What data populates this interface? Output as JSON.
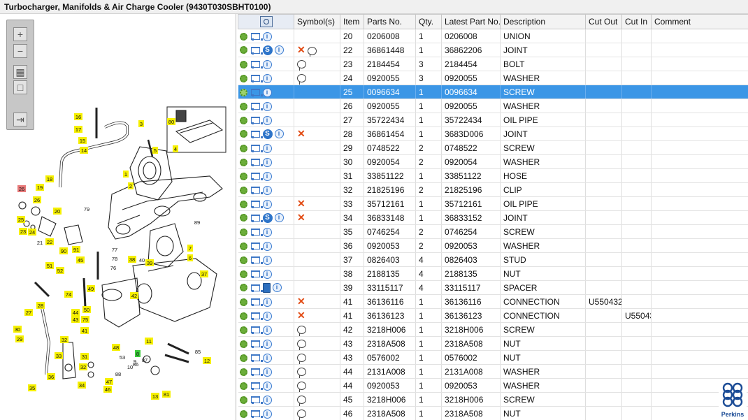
{
  "title": "Turbocharger, Manifolds & Air Charge Cooler (9430T030SBHT0100)",
  "columns": {
    "symbols": "Symbol(s)",
    "item": "Item",
    "parts_no": "Parts No.",
    "qty": "Qty.",
    "latest": "Latest Part No.",
    "description": "Description",
    "cut_out": "Cut Out",
    "cut_in": "Cut In",
    "comment": "Comment"
  },
  "rows": [
    {
      "item": "20",
      "parts_no": "0206008",
      "qty": "1",
      "latest": "0206008",
      "description": "UNION",
      "cut_out": "",
      "cut_in": "",
      "comment": "",
      "s_icon": false,
      "book_icon": false,
      "symbols": []
    },
    {
      "item": "22",
      "parts_no": "36861448",
      "qty": "1",
      "latest": "36862206",
      "description": "JOINT",
      "cut_out": "",
      "cut_in": "",
      "comment": "",
      "s_icon": true,
      "book_icon": false,
      "symbols": [
        "x",
        "note"
      ]
    },
    {
      "item": "23",
      "parts_no": "2184454",
      "qty": "3",
      "latest": "2184454",
      "description": "BOLT",
      "cut_out": "",
      "cut_in": "",
      "comment": "",
      "s_icon": false,
      "book_icon": false,
      "symbols": [
        "note"
      ]
    },
    {
      "item": "24",
      "parts_no": "0920055",
      "qty": "3",
      "latest": "0920055",
      "description": "WASHER",
      "cut_out": "",
      "cut_in": "",
      "comment": "",
      "s_icon": false,
      "book_icon": false,
      "symbols": [
        "note"
      ]
    },
    {
      "item": "25",
      "parts_no": "0096634",
      "qty": "1",
      "latest": "0096634",
      "description": "SCREW",
      "cut_out": "",
      "cut_in": "",
      "comment": "",
      "s_icon": false,
      "book_icon": false,
      "symbols": [],
      "selected": true
    },
    {
      "item": "26",
      "parts_no": "0920055",
      "qty": "1",
      "latest": "0920055",
      "description": "WASHER",
      "cut_out": "",
      "cut_in": "",
      "comment": "",
      "s_icon": false,
      "book_icon": false,
      "symbols": []
    },
    {
      "item": "27",
      "parts_no": "35722434",
      "qty": "1",
      "latest": "35722434",
      "description": "OIL PIPE",
      "cut_out": "",
      "cut_in": "",
      "comment": "",
      "s_icon": false,
      "book_icon": false,
      "symbols": []
    },
    {
      "item": "28",
      "parts_no": "36861454",
      "qty": "1",
      "latest": "3683D006",
      "description": "JOINT",
      "cut_out": "",
      "cut_in": "",
      "comment": "",
      "s_icon": true,
      "book_icon": false,
      "symbols": [
        "x"
      ]
    },
    {
      "item": "29",
      "parts_no": "0748522",
      "qty": "2",
      "latest": "0748522",
      "description": "SCREW",
      "cut_out": "",
      "cut_in": "",
      "comment": "",
      "s_icon": false,
      "book_icon": false,
      "symbols": []
    },
    {
      "item": "30",
      "parts_no": "0920054",
      "qty": "2",
      "latest": "0920054",
      "description": "WASHER",
      "cut_out": "",
      "cut_in": "",
      "comment": "",
      "s_icon": false,
      "book_icon": false,
      "symbols": []
    },
    {
      "item": "31",
      "parts_no": "33851122",
      "qty": "1",
      "latest": "33851122",
      "description": "HOSE",
      "cut_out": "",
      "cut_in": "",
      "comment": "",
      "s_icon": false,
      "book_icon": false,
      "symbols": []
    },
    {
      "item": "32",
      "parts_no": "21825196",
      "qty": "2",
      "latest": "21825196",
      "description": "CLIP",
      "cut_out": "",
      "cut_in": "",
      "comment": "",
      "s_icon": false,
      "book_icon": false,
      "symbols": []
    },
    {
      "item": "33",
      "parts_no": "35712161",
      "qty": "1",
      "latest": "35712161",
      "description": "OIL PIPE",
      "cut_out": "",
      "cut_in": "",
      "comment": "",
      "s_icon": false,
      "book_icon": false,
      "symbols": [
        "x"
      ]
    },
    {
      "item": "34",
      "parts_no": "36833148",
      "qty": "1",
      "latest": "36833152",
      "description": "JOINT",
      "cut_out": "",
      "cut_in": "",
      "comment": "",
      "s_icon": true,
      "book_icon": false,
      "symbols": [
        "x"
      ]
    },
    {
      "item": "35",
      "parts_no": "0746254",
      "qty": "2",
      "latest": "0746254",
      "description": "SCREW",
      "cut_out": "",
      "cut_in": "",
      "comment": "",
      "s_icon": false,
      "book_icon": false,
      "symbols": []
    },
    {
      "item": "36",
      "parts_no": "0920053",
      "qty": "2",
      "latest": "0920053",
      "description": "WASHER",
      "cut_out": "",
      "cut_in": "",
      "comment": "",
      "s_icon": false,
      "book_icon": false,
      "symbols": []
    },
    {
      "item": "37",
      "parts_no": "0826403",
      "qty": "4",
      "latest": "0826403",
      "description": "STUD",
      "cut_out": "",
      "cut_in": "",
      "comment": "",
      "s_icon": false,
      "book_icon": false,
      "symbols": []
    },
    {
      "item": "38",
      "parts_no": "2188135",
      "qty": "4",
      "latest": "2188135",
      "description": "NUT",
      "cut_out": "",
      "cut_in": "",
      "comment": "",
      "s_icon": false,
      "book_icon": false,
      "symbols": []
    },
    {
      "item": "39",
      "parts_no": "33115117",
      "qty": "4",
      "latest": "33115117",
      "description": "SPACER",
      "cut_out": "",
      "cut_in": "",
      "comment": "",
      "s_icon": false,
      "book_icon": true,
      "symbols": []
    },
    {
      "item": "41",
      "parts_no": "36136116",
      "qty": "1",
      "latest": "36136116",
      "description": "CONNECTION",
      "cut_out": "U550432",
      "cut_in": "",
      "comment": "",
      "s_icon": false,
      "book_icon": false,
      "symbols": [
        "x"
      ]
    },
    {
      "item": "41",
      "parts_no": "36136123",
      "qty": "1",
      "latest": "36136123",
      "description": "CONNECTION",
      "cut_out": "",
      "cut_in": "U55043",
      "comment": "",
      "s_icon": false,
      "book_icon": false,
      "symbols": [
        "x"
      ]
    },
    {
      "item": "42",
      "parts_no": "3218H006",
      "qty": "1",
      "latest": "3218H006",
      "description": "SCREW",
      "cut_out": "",
      "cut_in": "",
      "comment": "",
      "s_icon": false,
      "book_icon": false,
      "symbols": [
        "note"
      ]
    },
    {
      "item": "43",
      "parts_no": "2318A508",
      "qty": "1",
      "latest": "2318A508",
      "description": "NUT",
      "cut_out": "",
      "cut_in": "",
      "comment": "",
      "s_icon": false,
      "book_icon": false,
      "symbols": [
        "note"
      ]
    },
    {
      "item": "43",
      "parts_no": "0576002",
      "qty": "1",
      "latest": "0576002",
      "description": "NUT",
      "cut_out": "",
      "cut_in": "",
      "comment": "",
      "s_icon": false,
      "book_icon": false,
      "symbols": [
        "note"
      ]
    },
    {
      "item": "44",
      "parts_no": "2131A008",
      "qty": "1",
      "latest": "2131A008",
      "description": "WASHER",
      "cut_out": "",
      "cut_in": "",
      "comment": "",
      "s_icon": false,
      "book_icon": false,
      "symbols": [
        "note"
      ]
    },
    {
      "item": "44",
      "parts_no": "0920053",
      "qty": "1",
      "latest": "0920053",
      "description": "WASHER",
      "cut_out": "",
      "cut_in": "",
      "comment": "",
      "s_icon": false,
      "book_icon": false,
      "symbols": [
        "note"
      ]
    },
    {
      "item": "45",
      "parts_no": "3218H006",
      "qty": "1",
      "latest": "3218H006",
      "description": "SCREW",
      "cut_out": "",
      "cut_in": "",
      "comment": "",
      "s_icon": false,
      "book_icon": false,
      "symbols": [
        "note"
      ]
    },
    {
      "item": "46",
      "parts_no": "2318A508",
      "qty": "1",
      "latest": "2318A508",
      "description": "NUT",
      "cut_out": "",
      "cut_in": "",
      "comment": "",
      "s_icon": false,
      "book_icon": false,
      "symbols": [
        "note"
      ]
    }
  ],
  "callouts": [
    {
      "label": "16",
      "style": "yellow"
    },
    {
      "label": "17",
      "style": "yellow"
    },
    {
      "label": "15",
      "style": "yellow"
    },
    {
      "label": "14",
      "style": "yellow"
    },
    {
      "label": "3",
      "style": "yellow"
    },
    {
      "label": "5",
      "style": "yellow"
    },
    {
      "label": "4",
      "style": "yellow"
    },
    {
      "label": "80",
      "style": "yellow"
    },
    {
      "label": "1",
      "style": "yellow"
    },
    {
      "label": "2",
      "style": "yellow"
    },
    {
      "label": "18",
      "style": "yellow"
    },
    {
      "label": "19",
      "style": "yellow"
    },
    {
      "label": "26",
      "style": "red"
    },
    {
      "label": "26",
      "style": "yellow"
    },
    {
      "label": "20",
      "style": "yellow"
    },
    {
      "label": "79",
      "style": "plain"
    },
    {
      "label": "25",
      "style": "yellow"
    },
    {
      "label": "22",
      "style": "yellow"
    },
    {
      "label": "23",
      "style": "yellow"
    },
    {
      "label": "24",
      "style": "yellow"
    },
    {
      "label": "21",
      "style": "plain"
    },
    {
      "label": "90",
      "style": "yellow"
    },
    {
      "label": "91",
      "style": "yellow"
    },
    {
      "label": "89",
      "style": "plain"
    },
    {
      "label": "77",
      "style": "plain"
    },
    {
      "label": "78",
      "style": "plain"
    },
    {
      "label": "76",
      "style": "plain"
    },
    {
      "label": "38",
      "style": "yellow"
    },
    {
      "label": "40",
      "style": "plain"
    },
    {
      "label": "39",
      "style": "yellow"
    },
    {
      "label": "7",
      "style": "yellow"
    },
    {
      "label": "6",
      "style": "yellow"
    },
    {
      "label": "37",
      "style": "yellow"
    },
    {
      "label": "51",
      "style": "yellow"
    },
    {
      "label": "52",
      "style": "yellow"
    },
    {
      "label": "45",
      "style": "yellow"
    },
    {
      "label": "74",
      "style": "yellow"
    },
    {
      "label": "49",
      "style": "yellow"
    },
    {
      "label": "42",
      "style": "yellow"
    },
    {
      "label": "28",
      "style": "yellow"
    },
    {
      "label": "27",
      "style": "yellow"
    },
    {
      "label": "44",
      "style": "yellow"
    },
    {
      "label": "50",
      "style": "yellow"
    },
    {
      "label": "43",
      "style": "yellow"
    },
    {
      "label": "75",
      "style": "yellow"
    },
    {
      "label": "41",
      "style": "yellow"
    },
    {
      "label": "30",
      "style": "yellow"
    },
    {
      "label": "29",
      "style": "yellow"
    },
    {
      "label": "32",
      "style": "yellow"
    },
    {
      "label": "48",
      "style": "yellow"
    },
    {
      "label": "53",
      "style": "plain"
    },
    {
      "label": "10",
      "style": "plain"
    },
    {
      "label": "9",
      "style": "plain"
    },
    {
      "label": "11",
      "style": "yellow"
    },
    {
      "label": "8",
      "style": "green"
    },
    {
      "label": "87",
      "style": "plain"
    },
    {
      "label": "85",
      "style": "plain"
    },
    {
      "label": "12",
      "style": "yellow"
    },
    {
      "label": "33",
      "style": "yellow"
    },
    {
      "label": "31",
      "style": "yellow"
    },
    {
      "label": "32",
      "style": "yellow"
    },
    {
      "label": "88",
      "style": "plain"
    },
    {
      "label": "86",
      "style": "plain"
    },
    {
      "label": "36",
      "style": "yellow"
    },
    {
      "label": "47",
      "style": "yellow"
    },
    {
      "label": "34",
      "style": "yellow"
    },
    {
      "label": "46",
      "style": "yellow"
    },
    {
      "label": "35",
      "style": "yellow"
    },
    {
      "label": "13",
      "style": "yellow"
    },
    {
      "label": "81",
      "style": "yellow"
    }
  ],
  "logo": {
    "wordmark": "Perkins"
  },
  "colors": {
    "selected_row": "#3b96e6",
    "callout_yellow": "#f6f000",
    "callout_red": "#e87a7a",
    "callout_green": "#3ccc3c",
    "symbol_x": "#e24b14"
  },
  "toolbar_icons": [
    "zoom-in-icon",
    "zoom-out-icon",
    "fit-page-icon",
    "fit-window-icon",
    "export-icon"
  ]
}
